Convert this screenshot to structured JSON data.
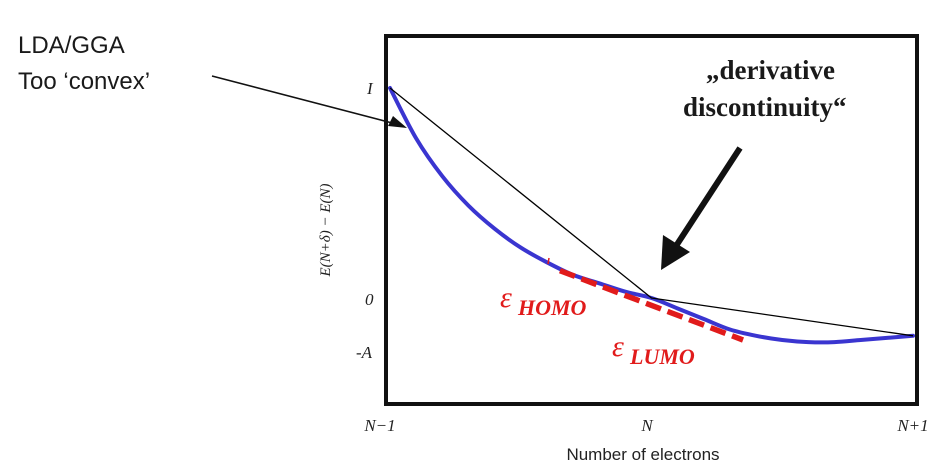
{
  "chart_data": {
    "type": "line",
    "title": "",
    "xlabel": "Number of electrons",
    "ylabel": "E(N+δ) − E(N)",
    "x_ticks": [
      "N−1",
      "N",
      "N+1"
    ],
    "y_ticks": [
      "I",
      "0",
      "-A"
    ],
    "xlim": [
      -1,
      1
    ],
    "ylim": [
      -0.32,
      1.0
    ],
    "series": [
      {
        "color": "#3a35d0",
        "x": [
          -1.0,
          -0.9,
          -0.8,
          -0.7,
          -0.6,
          -0.5,
          -0.4,
          -0.3,
          -0.2,
          -0.1,
          0.0,
          0.1,
          0.2,
          0.3,
          0.4,
          0.5,
          0.6,
          0.7,
          0.8,
          0.9,
          1.0
        ],
        "y": [
          1.0,
          0.76,
          0.58,
          0.44,
          0.33,
          0.24,
          0.17,
          0.11,
          0.07,
          0.03,
          0.0,
          -0.05,
          -0.1,
          -0.15,
          -0.18,
          -0.2,
          -0.21,
          -0.21,
          -0.2,
          -0.19,
          -0.18
        ]
      },
      {
        "color": "#000000",
        "x": [
          -1.0,
          0.0,
          1.0
        ],
        "y": [
          1.0,
          0.0,
          -0.18
        ]
      },
      {
        "color": "#e11b1b",
        "x": [
          -0.35,
          0.35
        ],
        "y": [
          0.13,
          -0.2
        ]
      }
    ],
    "annotations": {
      "lda_line1": "LDA/GGA",
      "lda_line2": "Too ‘convex’",
      "deriv_line1": "„derivative",
      "deriv_line2": "discontinuity“",
      "eps_symbol": "ε",
      "homo_sub": "HOMO",
      "lumo_sub": "LUMO"
    }
  }
}
